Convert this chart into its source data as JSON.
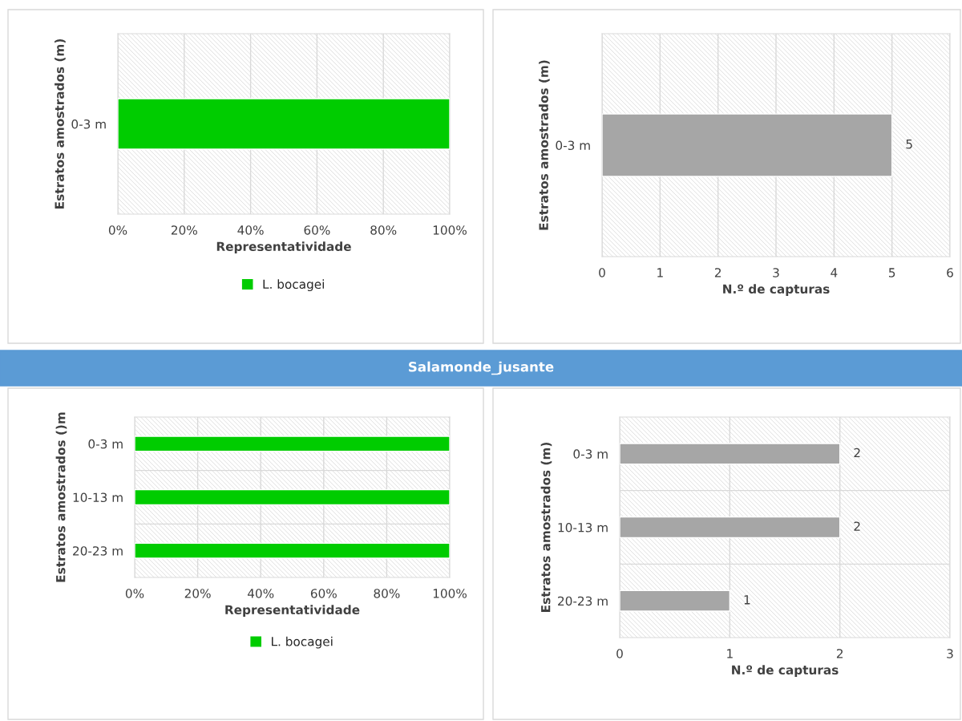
{
  "chart_data": [
    {
      "type": "bar",
      "orientation": "horizontal",
      "categories": [
        "0-3 m"
      ],
      "series": [
        {
          "name": "L. bocagei",
          "color": "#00cc00",
          "values": [
            100
          ]
        }
      ],
      "xlim": [
        0,
        100
      ],
      "xticks": [
        {
          "value": 0,
          "label": "0%"
        },
        {
          "value": 20,
          "label": "20%"
        },
        {
          "value": 40,
          "label": "40%"
        },
        {
          "value": 60,
          "label": "60%"
        },
        {
          "value": 80,
          "label": "80%"
        },
        {
          "value": 100,
          "label": "100%"
        }
      ],
      "xlabel": "Representatividade",
      "ylabel": "Estratos amostrados (m)",
      "grid": "x",
      "legend": "bottom"
    },
    {
      "type": "bar",
      "orientation": "horizontal",
      "categories": [
        "0-3 m"
      ],
      "series": [
        {
          "color": "#a6a6a6",
          "values": [
            5
          ]
        }
      ],
      "xlim": [
        0,
        6
      ],
      "xticks": [
        0,
        1,
        2,
        3,
        4,
        5,
        6
      ],
      "xlabel": "N.º de capturas",
      "ylabel": "Estratos amostrados (m)",
      "grid": "x",
      "data_labels": true
    },
    {
      "type": "bar",
      "orientation": "horizontal",
      "title": "Salamonde_jusante",
      "categories": [
        "0-3 m",
        "10-13 m",
        "20-23 m"
      ],
      "series": [
        {
          "name": "L. bocagei",
          "color": "#00cc00",
          "values": [
            100,
            100,
            100
          ]
        }
      ],
      "xlim": [
        0,
        100
      ],
      "xticks": [
        {
          "value": 0,
          "label": "0%"
        },
        {
          "value": 20,
          "label": "20%"
        },
        {
          "value": 40,
          "label": "40%"
        },
        {
          "value": 60,
          "label": "60%"
        },
        {
          "value": 80,
          "label": "80%"
        },
        {
          "value": 100,
          "label": "100%"
        }
      ],
      "xlabel": "Representatividade",
      "ylabel": "Estratos amostrados ()m",
      "grid": true,
      "legend": "bottom"
    },
    {
      "type": "bar",
      "orientation": "horizontal",
      "categories": [
        "0-3 m",
        "10-13 m",
        "20-23 m"
      ],
      "series": [
        {
          "color": "#a6a6a6",
          "values": [
            2,
            2,
            1
          ]
        }
      ],
      "xlim": [
        0,
        3
      ],
      "xticks": [
        0,
        1,
        2,
        3
      ],
      "xlabel": "N.º de capturas",
      "ylabel": "Estratos amostrados (m)",
      "grid": true,
      "data_labels": true
    }
  ]
}
